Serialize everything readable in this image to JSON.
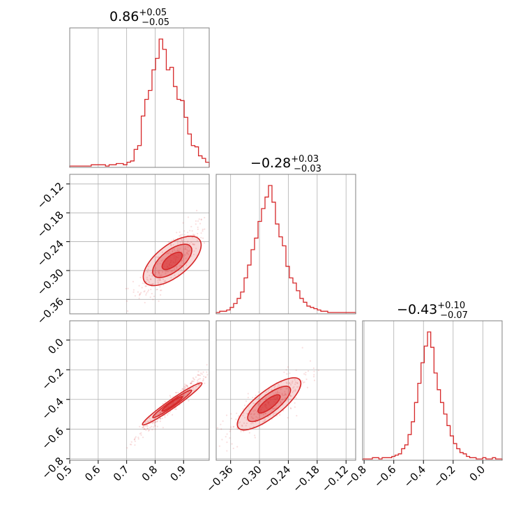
{
  "chart_data": {
    "type": "corner",
    "color": "#d62728",
    "parameters": [
      {
        "median": 0.86,
        "err_plus": 0.05,
        "err_minus": 0.05,
        "range": [
          0.5,
          0.99
        ],
        "ticks": [
          0.5,
          0.6,
          0.7,
          0.8,
          0.9
        ],
        "std": 0.045
      },
      {
        "median": -0.28,
        "err_plus": 0.03,
        "err_minus": 0.03,
        "range": [
          -0.39,
          -0.1
        ],
        "ticks": [
          -0.36,
          -0.3,
          -0.24,
          -0.18,
          -0.12
        ],
        "std": 0.03
      },
      {
        "median": -0.43,
        "err_plus": 0.1,
        "err_minus": 0.07,
        "range": [
          -0.81,
          0.13
        ],
        "ticks": [
          -0.8,
          -0.6,
          -0.4,
          -0.2,
          0.0
        ],
        "std": 0.08
      }
    ],
    "titles": {
      "p0": {
        "main": "0.86",
        "sup": "+0.05",
        "sub": "−0.05"
      },
      "p1": {
        "main": "−0.28",
        "sup": "+0.03",
        "sub": "−0.03"
      },
      "p2": {
        "main": "−0.43",
        "sup": "+0.10",
        "sub": "−0.07"
      }
    },
    "tick_labels": {
      "p0": [
        "0.5",
        "0.6",
        "0.7",
        "0.8",
        "0.9"
      ],
      "p1": [
        "−0.36",
        "−0.30",
        "−0.24",
        "−0.18",
        "−0.12"
      ],
      "p2": [
        "−0.8",
        "−0.6",
        "−0.4",
        "−0.2",
        "0.0"
      ]
    },
    "histograms": {
      "p0": [
        0.01,
        0.01,
        0.01,
        0.01,
        0.01,
        0.01,
        0.02,
        0.02,
        0.02,
        0.02,
        0.01,
        0.02,
        0.02,
        0.03,
        0.03,
        0.02,
        0.04,
        0.05,
        0.14,
        0.17,
        0.4,
        0.53,
        0.6,
        0.76,
        0.85,
        1.0,
        0.92,
        0.76,
        0.78,
        0.63,
        0.53,
        0.52,
        0.39,
        0.26,
        0.17,
        0.16,
        0.09,
        0.07,
        0.04
      ],
      "p1": [
        0.01,
        0.02,
        0.02,
        0.03,
        0.05,
        0.08,
        0.12,
        0.17,
        0.28,
        0.38,
        0.5,
        0.59,
        0.72,
        0.82,
        0.91,
        1.0,
        0.87,
        0.7,
        0.6,
        0.53,
        0.37,
        0.28,
        0.24,
        0.18,
        0.12,
        0.09,
        0.06,
        0.05,
        0.04,
        0.03,
        0.02,
        0.02,
        0.01,
        0.01,
        0.01,
        0.01,
        0.01,
        0.01,
        0.01,
        0.01
      ],
      "p2": [
        0.01,
        0.01,
        0.01,
        0.02,
        0.02,
        0.01,
        0.02,
        0.02,
        0.02,
        0.03,
        0.04,
        0.05,
        0.09,
        0.12,
        0.2,
        0.3,
        0.45,
        0.6,
        0.76,
        0.89,
        1.0,
        0.88,
        0.68,
        0.55,
        0.45,
        0.36,
        0.27,
        0.19,
        0.13,
        0.09,
        0.06,
        0.05,
        0.03,
        0.02,
        0.02,
        0.01,
        0.01,
        0.02,
        0.01,
        0.01,
        0.02,
        0.01,
        0.01
      ]
    }
  }
}
